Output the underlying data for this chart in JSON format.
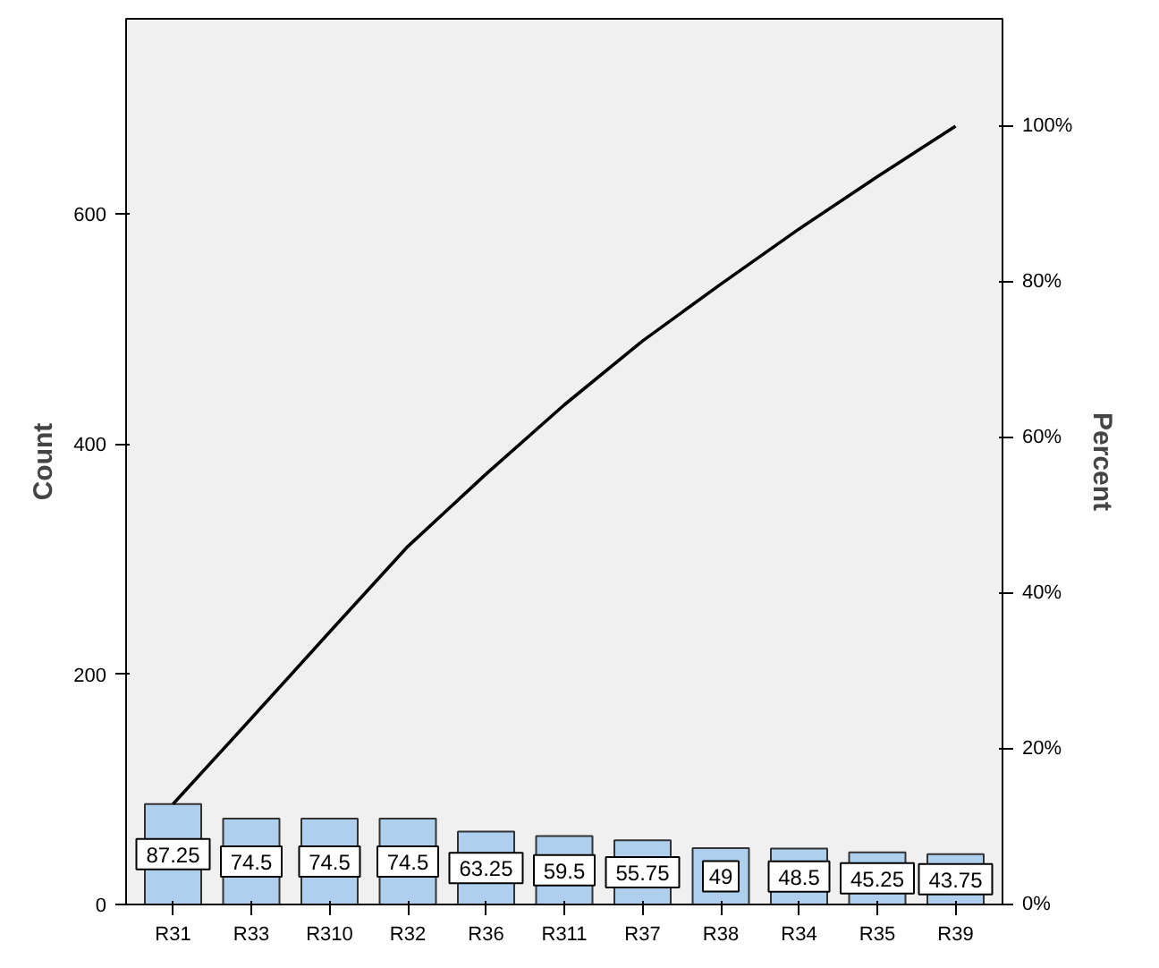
{
  "chart_data": {
    "type": "bar",
    "ylabel": "Count",
    "y2label": "Percent",
    "categories": [
      "R31",
      "R33",
      "R310",
      "R32",
      "R36",
      "R311",
      "R37",
      "R38",
      "R34",
      "R35",
      "R39"
    ],
    "series": [
      {
        "color": "#aed0ee",
        "values": [
          87.25,
          74.5,
          74.5,
          74.5,
          63.25,
          59.5,
          55.75,
          49,
          48.5,
          45.25,
          43.75
        ],
        "value_labels": [
          "87.25",
          "74.5",
          "74.5",
          "74.5",
          "63.25",
          "59.5",
          "55.75",
          "49",
          "48.5",
          "45.25",
          "43.75"
        ]
      },
      {
        "type": "line",
        "axis": "y2",
        "color": "#000000",
        "values": [
          12.9,
          23.9,
          35.0,
          46.0,
          55.3,
          64.2,
          72.4,
          79.7,
          86.8,
          93.5,
          100
        ]
      }
    ],
    "grid": false,
    "ylim": [
      0,
      769
    ],
    "yticks": [
      0,
      200,
      400,
      600
    ],
    "y2lim": [
      0,
      113.8
    ],
    "y2ticks": [
      {
        "value": 0,
        "label": "0%"
      },
      {
        "value": 20,
        "label": "20%"
      },
      {
        "value": 40,
        "label": "40%"
      },
      {
        "value": 60,
        "label": "60%"
      },
      {
        "value": 80,
        "label": "80%"
      },
      {
        "value": 100,
        "label": "100%"
      }
    ]
  }
}
